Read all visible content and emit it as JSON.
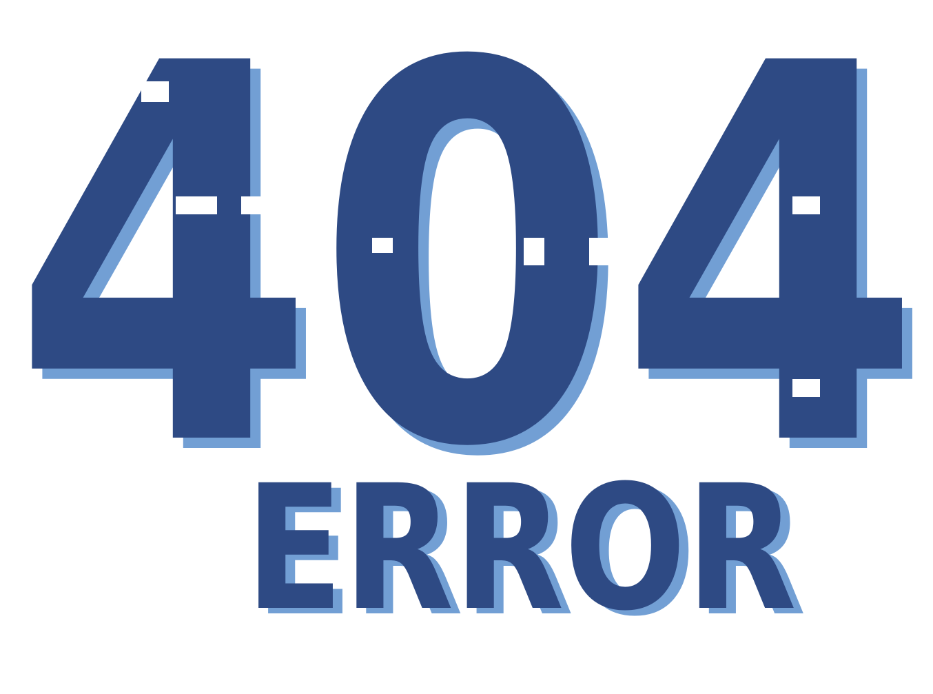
{
  "headline": {
    "code": "404",
    "word": "ERROR"
  },
  "colors": {
    "background": "#ffffff",
    "primary": "#2e4a84",
    "shadow": "#729fd4"
  }
}
